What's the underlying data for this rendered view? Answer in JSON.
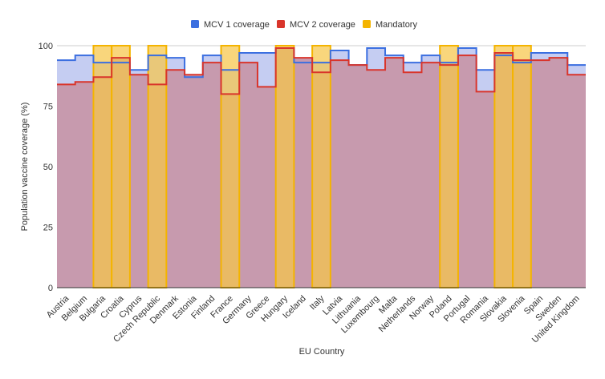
{
  "chart_data": {
    "type": "area",
    "step": true,
    "title": "",
    "xlabel": "EU Country",
    "ylabel": "Population vaccine coverage (%)",
    "ylim": [
      0,
      100
    ],
    "yticks": [
      0,
      25,
      50,
      75,
      100
    ],
    "grid": true,
    "legend_position": "top",
    "categories": [
      "Austria",
      "Belgium",
      "Bulgaria",
      "Croatia",
      "Cyprus",
      "Czech Republic",
      "Denmark",
      "Estonia",
      "Finland",
      "France",
      "Germany",
      "Greece",
      "Hungary",
      "Iceland",
      "Italy",
      "Latvia",
      "Lithuania",
      "Luxembourg",
      "Malta",
      "Netherlands",
      "Norway",
      "Poland",
      "Portugal",
      "Romania",
      "Slovakia",
      "Slovenia",
      "Spain",
      "Sweden",
      "United Kingdom"
    ],
    "series": [
      {
        "name": "MCV 1 coverage",
        "color": "#3b6fe0",
        "fill": "#c5cdf2",
        "values": [
          94,
          96,
          93,
          93,
          90,
          96,
          95,
          87,
          96,
          90,
          97,
          97,
          99,
          93,
          93,
          98,
          92,
          99,
          96,
          93,
          96,
          93,
          99,
          90,
          96,
          93,
          97,
          97,
          92
        ]
      },
      {
        "name": "MCV 2 coverage",
        "color": "#d9352b",
        "fill": "#c79aae",
        "values": [
          84,
          85,
          87,
          95,
          88,
          84,
          90,
          88,
          93,
          80,
          93,
          83,
          99,
          95,
          89,
          94,
          92,
          90,
          95,
          89,
          93,
          92,
          96,
          81,
          97,
          94,
          94,
          95,
          88
        ]
      },
      {
        "name": "Mandatory",
        "color": "#f4b400",
        "fill": "#f7c64a",
        "values": [
          0,
          0,
          100,
          100,
          0,
          100,
          0,
          0,
          0,
          100,
          0,
          0,
          100,
          0,
          100,
          0,
          0,
          0,
          0,
          0,
          0,
          100,
          0,
          0,
          100,
          100,
          0,
          0,
          0
        ]
      }
    ]
  }
}
